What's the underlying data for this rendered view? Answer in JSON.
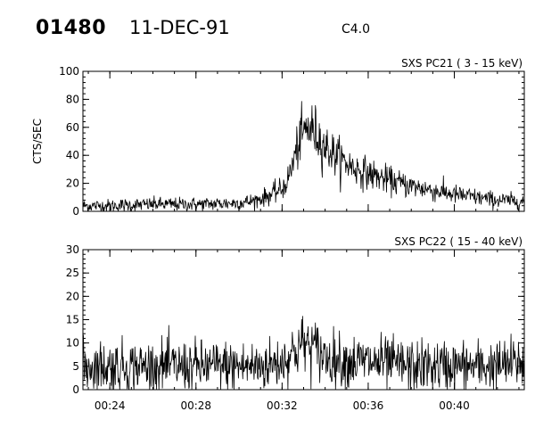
{
  "header": {
    "event_id": "01480",
    "date": "11-DEC-91",
    "goes_class": "C4.0"
  },
  "chart_data": [
    {
      "type": "line",
      "title": "SXS PC21  (  3 - 15 keV)",
      "ylabel": "CTS/SEC",
      "xlabel": "",
      "xlim": [
        "00:22:45",
        "00:43:15"
      ],
      "ylim": [
        0,
        100
      ],
      "yticks": [
        0,
        20,
        40,
        60,
        80,
        100
      ],
      "xticks": [
        "00:24",
        "00:28",
        "00:32",
        "00:36",
        "00:40"
      ],
      "show_xtick_labels": false,
      "grid": false,
      "series": [
        {
          "x": [
            "00:22:45",
            "00:24:00",
            "00:26:00",
            "00:28:00",
            "00:30:00",
            "00:30:30",
            "00:31:00",
            "00:31:30",
            "00:32:00",
            "00:32:15",
            "00:32:30",
            "00:32:45",
            "00:33:00",
            "00:33:15",
            "00:33:30",
            "00:33:45",
            "00:34:00",
            "00:34:30",
            "00:35:00",
            "00:35:30",
            "00:36:00",
            "00:37:00",
            "00:38:00",
            "00:39:00",
            "00:40:00",
            "00:41:00",
            "00:42:00",
            "00:43:15"
          ],
          "y": [
            4,
            4,
            5,
            5,
            6,
            7,
            9,
            12,
            16,
            22,
            34,
            48,
            56,
            60,
            57,
            52,
            46,
            40,
            34,
            30,
            27,
            22,
            18,
            15,
            12,
            10,
            8,
            7
          ]
        }
      ]
    },
    {
      "type": "line",
      "title": "SXS PC22  ( 15 - 40 keV)",
      "ylabel": "",
      "xlabel": "",
      "xlim": [
        "00:22:45",
        "00:43:15"
      ],
      "ylim": [
        0,
        30
      ],
      "yticks": [
        0,
        5,
        10,
        15,
        20,
        25,
        30
      ],
      "xticks": [
        "00:24",
        "00:28",
        "00:32",
        "00:36",
        "00:40"
      ],
      "show_xtick_labels": true,
      "grid": false,
      "series": [
        {
          "x": [
            "00:22:45",
            "00:24:00",
            "00:26:00",
            "00:28:00",
            "00:30:00",
            "00:31:00",
            "00:32:00",
            "00:32:30",
            "00:33:00",
            "00:33:30",
            "00:34:00",
            "00:35:00",
            "00:36:00",
            "00:38:00",
            "00:40:00",
            "00:42:00",
            "00:43:15"
          ],
          "y": [
            5,
            5,
            5,
            5,
            5,
            5,
            6,
            8,
            10,
            9,
            7,
            6,
            6,
            5,
            5,
            5,
            6
          ]
        }
      ]
    }
  ]
}
